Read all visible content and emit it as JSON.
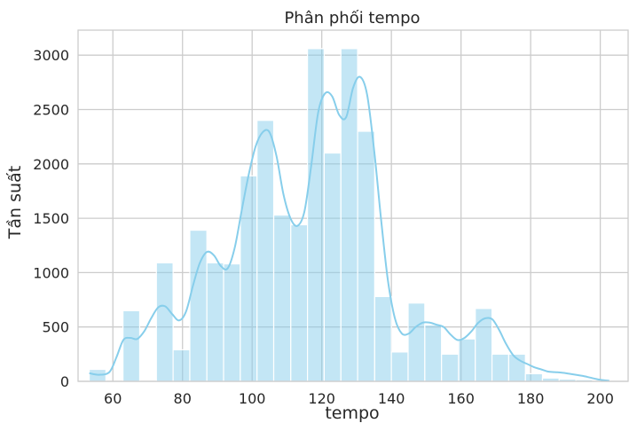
{
  "chart_data": {
    "type": "bar",
    "title": "Phân phối tempo",
    "xlabel": "tempo",
    "ylabel": "Tần suất",
    "xlim": [
      50,
      208
    ],
    "ylim": [
      0,
      3230
    ],
    "xticks": [
      "60",
      "80",
      "100",
      "120",
      "140",
      "160",
      "180",
      "200"
    ],
    "yticks": [
      "0",
      "500",
      "1000",
      "1500",
      "2000",
      "2500",
      "3000"
    ],
    "grid": true,
    "bar_color": "#87ceeb",
    "kde_color": "#87ceeb",
    "bins": [
      {
        "x0": 53.2,
        "x1": 58.0,
        "count": 110
      },
      {
        "x0": 58.0,
        "x1": 62.9,
        "count": 0
      },
      {
        "x0": 62.9,
        "x1": 67.7,
        "count": 650
      },
      {
        "x0": 67.7,
        "x1": 72.5,
        "count": 0
      },
      {
        "x0": 72.5,
        "x1": 77.3,
        "count": 1090
      },
      {
        "x0": 77.3,
        "x1": 82.1,
        "count": 290
      },
      {
        "x0": 82.1,
        "x1": 87.0,
        "count": 1390
      },
      {
        "x0": 87.0,
        "x1": 91.8,
        "count": 1090
      },
      {
        "x0": 91.8,
        "x1": 96.6,
        "count": 1080
      },
      {
        "x0": 96.6,
        "x1": 101.4,
        "count": 1890
      },
      {
        "x0": 101.4,
        "x1": 106.2,
        "count": 2400
      },
      {
        "x0": 106.2,
        "x1": 111.1,
        "count": 1530
      },
      {
        "x0": 111.1,
        "x1": 115.9,
        "count": 1440
      },
      {
        "x0": 115.9,
        "x1": 120.7,
        "count": 3060
      },
      {
        "x0": 120.7,
        "x1": 125.5,
        "count": 2100
      },
      {
        "x0": 125.5,
        "x1": 130.3,
        "count": 3060
      },
      {
        "x0": 130.3,
        "x1": 135.2,
        "count": 2300
      },
      {
        "x0": 135.2,
        "x1": 140.0,
        "count": 780
      },
      {
        "x0": 140.0,
        "x1": 144.8,
        "count": 270
      },
      {
        "x0": 144.8,
        "x1": 149.6,
        "count": 720
      },
      {
        "x0": 149.6,
        "x1": 154.4,
        "count": 520
      },
      {
        "x0": 154.4,
        "x1": 159.3,
        "count": 250
      },
      {
        "x0": 159.3,
        "x1": 164.1,
        "count": 390
      },
      {
        "x0": 164.1,
        "x1": 168.9,
        "count": 670
      },
      {
        "x0": 168.9,
        "x1": 173.7,
        "count": 250
      },
      {
        "x0": 173.7,
        "x1": 178.5,
        "count": 250
      },
      {
        "x0": 178.5,
        "x1": 183.4,
        "count": 70
      },
      {
        "x0": 183.4,
        "x1": 188.2,
        "count": 30
      },
      {
        "x0": 188.2,
        "x1": 193.0,
        "count": 20
      },
      {
        "x0": 193.0,
        "x1": 197.8,
        "count": 15
      },
      {
        "x0": 197.8,
        "x1": 202.6,
        "count": 5
      }
    ],
    "kde": {
      "x": [
        53.2,
        56,
        59,
        61,
        63,
        65,
        67,
        69,
        71,
        73,
        75,
        77,
        79,
        81,
        83,
        85,
        87,
        89,
        91,
        93,
        95,
        97,
        99,
        101,
        103,
        105,
        107,
        109,
        111,
        113,
        115,
        117,
        119,
        121,
        123,
        125,
        127,
        129,
        131,
        133,
        135,
        137,
        139,
        141,
        143,
        145,
        147,
        149,
        151,
        153,
        155,
        157,
        159,
        161,
        163,
        165,
        167,
        169,
        171,
        173,
        175,
        177,
        179,
        181,
        183,
        185,
        187,
        189,
        191,
        193,
        195,
        197,
        199,
        201,
        202.6
      ],
      "y": [
        75,
        60,
        85,
        220,
        380,
        400,
        390,
        460,
        580,
        680,
        690,
        620,
        560,
        640,
        880,
        1090,
        1190,
        1160,
        1060,
        1040,
        1230,
        1570,
        1900,
        2160,
        2290,
        2290,
        2070,
        1720,
        1500,
        1430,
        1560,
        1990,
        2480,
        2650,
        2620,
        2450,
        2430,
        2700,
        2800,
        2640,
        2140,
        1500,
        930,
        580,
        440,
        440,
        500,
        540,
        540,
        520,
        500,
        430,
        380,
        400,
        460,
        540,
        580,
        570,
        470,
        340,
        240,
        190,
        160,
        130,
        110,
        90,
        85,
        80,
        70,
        60,
        50,
        35,
        20,
        10,
        5
      ]
    }
  }
}
